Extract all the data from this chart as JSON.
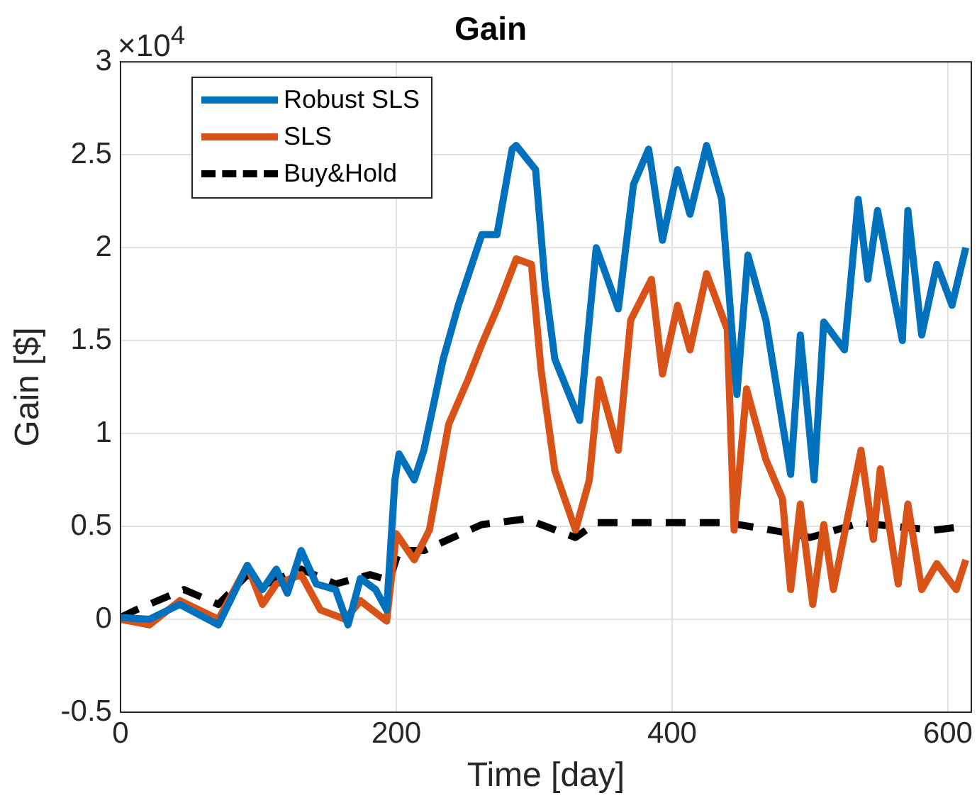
{
  "chart_data": {
    "type": "line",
    "title": "Gain",
    "xlabel": "Time [day]",
    "ylabel": "Gain [$]",
    "annotations": [
      "×10$^{4}$"
    ],
    "xlim": [
      0,
      617
    ],
    "xticks": [
      0,
      200,
      400,
      600
    ],
    "ylim": [
      -0.5,
      3
    ],
    "yticks": [
      -0.5,
      0,
      0.5,
      1,
      1.5,
      2,
      2.5,
      3
    ],
    "grid": true,
    "legend": "top left",
    "marker": "none",
    "series": [
      {
        "name": "Robust SLS",
        "color": "#0072bd",
        "line_style": "solid",
        "x": [
          0,
          21,
          43,
          71,
          92,
          103,
          113,
          121,
          131,
          142,
          156,
          165,
          174,
          185,
          193,
          199,
          202,
          213,
          220,
          234,
          245,
          262,
          273,
          284,
          287,
          301,
          308,
          315,
          333,
          345,
          361,
          372,
          383,
          393,
          404,
          413,
          425,
          436,
          447,
          455,
          468,
          486,
          493,
          503,
          510,
          525,
          535,
          542,
          549,
          567,
          571,
          581,
          592,
          603,
          613
        ],
        "values": [
          0.01,
          0,
          0.08,
          -0.03,
          0.29,
          0.16,
          0.27,
          0.14,
          0.37,
          0.19,
          0.16,
          -0.03,
          0.22,
          0.16,
          0.05,
          0.75,
          0.89,
          0.75,
          0.91,
          1.4,
          1.69,
          2.07,
          2.07,
          2.53,
          2.55,
          2.42,
          1.8,
          1.4,
          1.07,
          2.0,
          1.67,
          2.34,
          2.53,
          2.04,
          2.42,
          2.18,
          2.55,
          2.26,
          1.21,
          1.96,
          1.61,
          0.78,
          1.53,
          0.75,
          1.6,
          1.45,
          2.26,
          1.83,
          2.2,
          1.5,
          2.2,
          1.53,
          1.91,
          1.69,
          2.0
        ]
      },
      {
        "name": "SLS",
        "color": "#d95319",
        "line_style": "solid",
        "x": [
          0,
          21,
          43,
          71,
          92,
          103,
          113,
          131,
          145,
          163,
          174,
          193,
          200,
          213,
          224,
          238,
          252,
          262,
          273,
          287,
          298,
          305,
          315,
          330,
          340,
          347,
          361,
          370,
          385,
          393,
          404,
          413,
          425,
          440,
          445,
          454,
          468,
          480,
          486,
          493,
          502,
          510,
          517,
          537,
          546,
          551,
          564,
          571,
          581,
          592,
          606,
          613
        ],
        "values": [
          0,
          -0.03,
          0.1,
          0,
          0.29,
          0.08,
          0.19,
          0.24,
          0.05,
          0,
          0.1,
          -0.01,
          0.46,
          0.32,
          0.48,
          1.05,
          1.29,
          1.48,
          1.67,
          1.94,
          1.91,
          1.34,
          0.8,
          0.48,
          0.75,
          1.29,
          0.91,
          1.61,
          1.83,
          1.32,
          1.69,
          1.45,
          1.86,
          1.56,
          0.48,
          1.24,
          0.86,
          0.65,
          0.16,
          0.62,
          0.08,
          0.51,
          0.16,
          0.91,
          0.43,
          0.81,
          0.19,
          0.62,
          0.16,
          0.3,
          0.16,
          0.32
        ]
      },
      {
        "name": "Buy&Hold",
        "color": "#000000",
        "line_style": "dashed",
        "x": [
          0,
          11,
          46,
          71,
          92,
          106,
          131,
          156,
          181,
          195,
          202,
          220,
          238,
          262,
          294,
          330,
          345,
          400,
          440,
          480,
          500,
          537,
          560,
          590,
          613
        ],
        "values": [
          0.01,
          0.05,
          0.16,
          0.08,
          0.24,
          0.19,
          0.27,
          0.19,
          0.24,
          0.21,
          0.37,
          0.37,
          0.43,
          0.51,
          0.54,
          0.44,
          0.52,
          0.52,
          0.52,
          0.47,
          0.44,
          0.52,
          0.5,
          0.48,
          0.5
        ]
      }
    ]
  }
}
